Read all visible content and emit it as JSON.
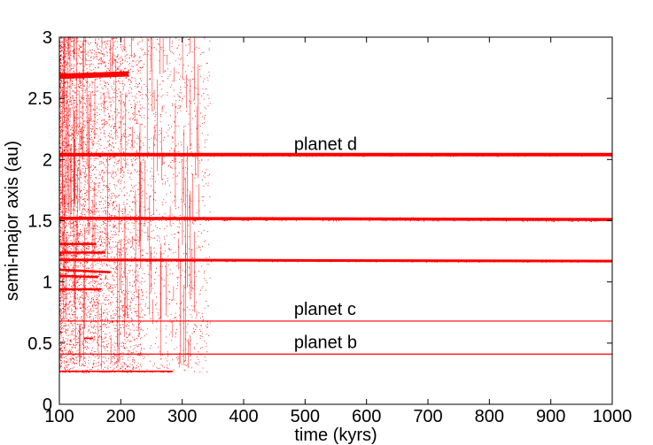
{
  "chart_data": {
    "type": "scatter",
    "title": "",
    "xlabel": "time (kyrs)",
    "ylabel": "semi-major axis (au)",
    "xlim": [
      100,
      1000
    ],
    "ylim": [
      0,
      3
    ],
    "xticks": [
      "100",
      "200",
      "300",
      "400",
      "500",
      "600",
      "700",
      "800",
      "900",
      "1000"
    ],
    "yticks": [
      "0",
      "0.5",
      "1",
      "1.5",
      "2",
      "2.5",
      "3"
    ],
    "grid": false,
    "legend": "none",
    "color": "#ff0000",
    "annotations": [
      {
        "text": "planet d",
        "x": 482,
        "y": 2.08
      },
      {
        "text": "planet c",
        "x": 482,
        "y": 0.73
      },
      {
        "text": "planet b",
        "x": 482,
        "y": 0.46
      }
    ],
    "series": [
      {
        "name": "planet d",
        "x": [
          100,
          1000
        ],
        "y": [
          2.04,
          2.04
        ],
        "scatter": 0.012,
        "weight": 4
      },
      {
        "name": "planet c",
        "x": [
          100,
          1000
        ],
        "y": [
          0.68,
          0.68
        ],
        "scatter": 0.0,
        "weight": 1.2
      },
      {
        "name": "planet b",
        "x": [
          100,
          1000
        ],
        "y": [
          0.41,
          0.41
        ],
        "scatter": 0.0,
        "weight": 1.2
      },
      {
        "x": [
          100,
          1000
        ],
        "y": [
          1.52,
          1.51
        ],
        "scatter": 0.015,
        "weight": 3.5
      },
      {
        "x": [
          100,
          1000
        ],
        "y": [
          1.18,
          1.17
        ],
        "scatter": 0.008,
        "weight": 3
      },
      {
        "x": [
          100,
          284
        ],
        "y": [
          0.27,
          0.27
        ],
        "scatter": 0.005,
        "weight": 1.6
      },
      {
        "x": [
          100,
          213
        ],
        "y": [
          2.68,
          2.7
        ],
        "scatter": 0.03,
        "weight": 6
      },
      {
        "x": [
          100,
          183
        ],
        "y": [
          1.1,
          1.08
        ],
        "scatter": 0.01,
        "weight": 2.5
      },
      {
        "x": [
          100,
          163
        ],
        "y": [
          1.05,
          1.04
        ],
        "scatter": 0.01,
        "weight": 2.5
      },
      {
        "x": [
          100,
          168
        ],
        "y": [
          0.94,
          0.94
        ],
        "scatter": 0.01,
        "weight": 2.5
      },
      {
        "x": [
          100,
          175
        ],
        "y": [
          1.24,
          1.24
        ],
        "scatter": 0.02,
        "weight": 2.5
      },
      {
        "x": [
          100,
          160
        ],
        "y": [
          1.31,
          1.31
        ],
        "scatter": 0.02,
        "weight": 2.5
      },
      {
        "x": [
          140,
          155
        ],
        "y": [
          0.54,
          0.54
        ],
        "scatter": 0.005,
        "weight": 1.5
      }
    ],
    "cloud": {
      "x": [
        100,
        345
      ],
      "y": [
        0.26,
        3.0
      ],
      "density": "high"
    }
  }
}
